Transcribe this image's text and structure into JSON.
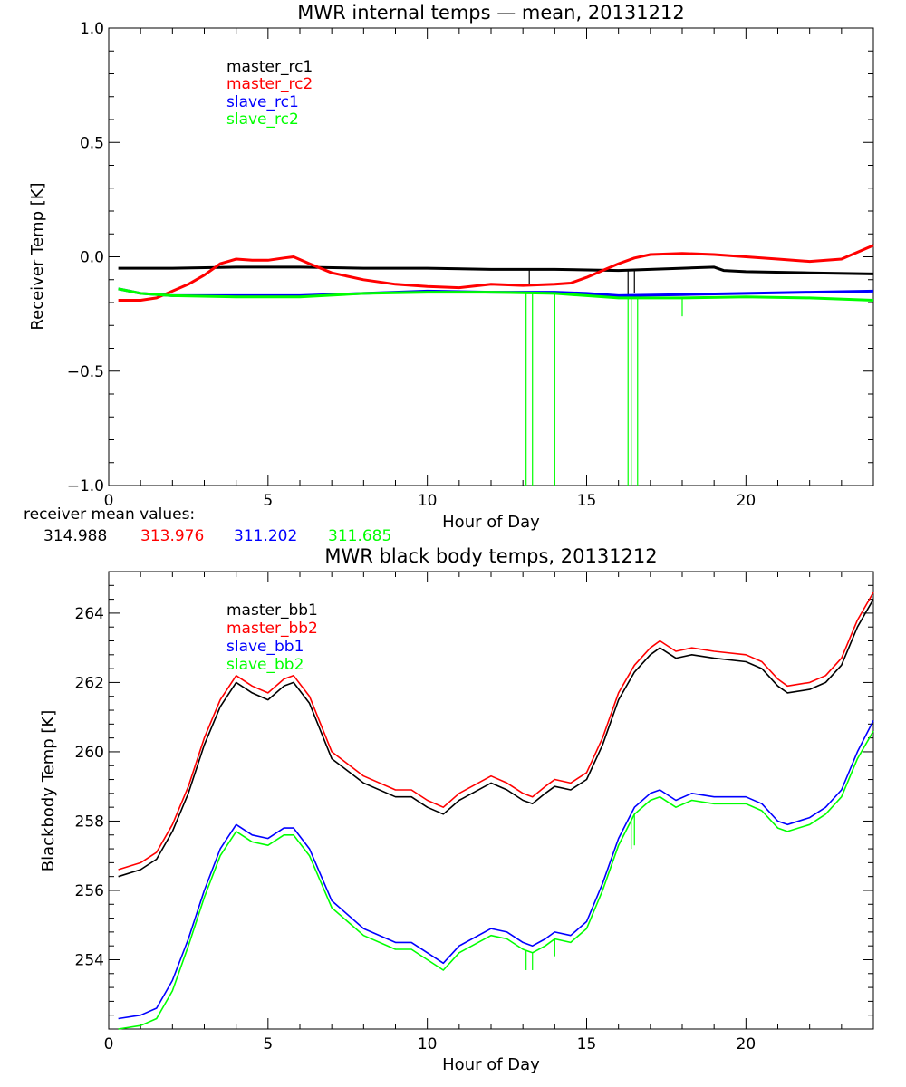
{
  "chart_data": [
    {
      "type": "line",
      "title": "MWR internal temps — mean, 20131212",
      "xlabel": "Hour of Day",
      "ylabel": "Receiver Temp [K]",
      "xlim": [
        0,
        24
      ],
      "ylim": [
        -1.0,
        1.0
      ],
      "x_ticks": [
        0,
        5,
        10,
        15,
        20
      ],
      "x_tick_labels": [
        "0",
        "5",
        "10",
        "15",
        "20"
      ],
      "y_ticks": [
        -1.0,
        -0.5,
        0.0,
        0.5,
        1.0
      ],
      "y_tick_labels": [
        "−1.0",
        "−0.5",
        "0.0",
        "0.5",
        "1.0"
      ],
      "legend_position": "top-left",
      "series": [
        {
          "name": "master_rc1",
          "color": "#000000",
          "x": [
            0.3,
            2,
            4,
            6,
            8,
            10,
            12,
            14,
            16,
            17,
            18,
            19,
            19.3,
            20,
            22,
            24
          ],
          "y": [
            -0.05,
            -0.05,
            -0.045,
            -0.045,
            -0.05,
            -0.05,
            -0.055,
            -0.055,
            -0.06,
            -0.055,
            -0.05,
            -0.045,
            -0.06,
            -0.065,
            -0.07,
            -0.075
          ],
          "spikes": [
            {
              "x": 13.2,
              "y": -0.12
            },
            {
              "x": 16.3,
              "y": -0.17
            },
            {
              "x": 16.5,
              "y": -0.16
            }
          ]
        },
        {
          "name": "master_rc2",
          "color": "#ff0000",
          "x": [
            0.3,
            1,
            1.5,
            2,
            2.5,
            3,
            3.5,
            4,
            4.5,
            5,
            5.5,
            5.8,
            6.3,
            7,
            8,
            9,
            10,
            11,
            12,
            13,
            14,
            14.5,
            15,
            15.5,
            16,
            16.5,
            17,
            18,
            19,
            20,
            21,
            22,
            23,
            24
          ],
          "y": [
            -0.19,
            -0.19,
            -0.18,
            -0.15,
            -0.12,
            -0.08,
            -0.03,
            -0.01,
            -0.015,
            -0.015,
            -0.005,
            0.0,
            -0.03,
            -0.07,
            -0.1,
            -0.12,
            -0.13,
            -0.135,
            -0.12,
            -0.125,
            -0.12,
            -0.115,
            -0.09,
            -0.06,
            -0.03,
            -0.005,
            0.01,
            0.015,
            0.01,
            0.0,
            -0.01,
            -0.02,
            -0.01,
            0.05
          ]
        },
        {
          "name": "slave_rc1",
          "color": "#0000ff",
          "x": [
            0.3,
            1,
            2,
            4,
            6,
            8,
            10,
            12,
            14,
            15,
            16,
            18,
            20,
            22,
            24
          ],
          "y": [
            -0.14,
            -0.16,
            -0.17,
            -0.17,
            -0.17,
            -0.16,
            -0.15,
            -0.155,
            -0.155,
            -0.16,
            -0.17,
            -0.165,
            -0.16,
            -0.155,
            -0.15
          ]
        },
        {
          "name": "slave_rc2",
          "color": "#00ff00",
          "x": [
            0.3,
            1,
            2,
            4,
            6,
            8,
            10,
            12,
            14,
            15,
            16,
            18,
            20,
            22,
            24
          ],
          "y": [
            -0.14,
            -0.16,
            -0.17,
            -0.175,
            -0.175,
            -0.16,
            -0.155,
            -0.155,
            -0.16,
            -0.17,
            -0.18,
            -0.18,
            -0.175,
            -0.18,
            -0.19
          ],
          "spikes": [
            {
              "x": 13.1,
              "y": -1.0
            },
            {
              "x": 13.3,
              "y": -1.0
            },
            {
              "x": 14.0,
              "y": -1.0
            },
            {
              "x": 16.3,
              "y": -1.0
            },
            {
              "x": 16.4,
              "y": -1.0
            },
            {
              "x": 16.6,
              "y": -1.0
            },
            {
              "x": 18.0,
              "y": -0.26
            }
          ]
        }
      ],
      "annotation": {
        "label": "receiver mean values:",
        "values": [
          "314.988",
          "313.976",
          "311.202",
          "311.685"
        ],
        "colors": [
          "#000000",
          "#ff0000",
          "#0000ff",
          "#00ff00"
        ]
      }
    },
    {
      "type": "line",
      "title": "MWR black body temps, 20131212",
      "xlabel": "Hour of Day",
      "ylabel": "Blackbody Temp [K]",
      "xlim": [
        0,
        24
      ],
      "ylim": [
        252,
        265.2
      ],
      "x_ticks": [
        0,
        5,
        10,
        15,
        20
      ],
      "x_tick_labels": [
        "0",
        "5",
        "10",
        "15",
        "20"
      ],
      "y_ticks": [
        254,
        256,
        258,
        260,
        262,
        264
      ],
      "y_tick_labels": [
        "254",
        "256",
        "258",
        "260",
        "262",
        "264"
      ],
      "legend_position": "top-left",
      "series": [
        {
          "name": "master_bb1",
          "color": "#000000",
          "x": [
            0.3,
            1,
            1.5,
            2,
            2.5,
            3,
            3.5,
            4,
            4.5,
            5,
            5.5,
            5.8,
            6.3,
            7,
            8,
            9,
            9.5,
            10,
            10.5,
            11,
            12,
            12.5,
            13,
            13.3,
            13.7,
            14,
            14.5,
            15,
            15.5,
            16,
            16.5,
            17,
            17.3,
            17.8,
            18.3,
            19,
            20,
            20.5,
            21,
            21.3,
            22,
            22.5,
            23,
            23.5,
            24
          ],
          "y": [
            256.4,
            256.6,
            256.9,
            257.7,
            258.8,
            260.2,
            261.3,
            262.0,
            261.7,
            261.5,
            261.9,
            262.0,
            261.4,
            259.8,
            259.1,
            258.7,
            258.7,
            258.4,
            258.2,
            258.6,
            259.1,
            258.9,
            258.6,
            258.5,
            258.8,
            259.0,
            258.9,
            259.2,
            260.2,
            261.5,
            262.3,
            262.8,
            263.0,
            262.7,
            262.8,
            262.7,
            262.6,
            262.4,
            261.9,
            261.7,
            261.8,
            262.0,
            262.5,
            263.6,
            264.4
          ]
        },
        {
          "name": "master_bb2",
          "color": "#ff0000",
          "x": [
            0.3,
            1,
            1.5,
            2,
            2.5,
            3,
            3.5,
            4,
            4.5,
            5,
            5.5,
            5.8,
            6.3,
            7,
            8,
            9,
            9.5,
            10,
            10.5,
            11,
            12,
            12.5,
            13,
            13.3,
            13.7,
            14,
            14.5,
            15,
            15.5,
            16,
            16.5,
            17,
            17.3,
            17.8,
            18.3,
            19,
            20,
            20.5,
            21,
            21.3,
            22,
            22.5,
            23,
            23.5,
            24
          ],
          "y": [
            256.6,
            256.8,
            257.1,
            257.9,
            259.0,
            260.4,
            261.5,
            262.2,
            261.9,
            261.7,
            262.1,
            262.2,
            261.6,
            260.0,
            259.3,
            258.9,
            258.9,
            258.6,
            258.4,
            258.8,
            259.3,
            259.1,
            258.8,
            258.7,
            259.0,
            259.2,
            259.1,
            259.4,
            260.4,
            261.7,
            262.5,
            263.0,
            263.2,
            262.9,
            263.0,
            262.9,
            262.8,
            262.6,
            262.1,
            261.9,
            262.0,
            262.2,
            262.7,
            263.8,
            264.6
          ]
        },
        {
          "name": "slave_bb1",
          "color": "#0000ff",
          "x": [
            0.3,
            1,
            1.5,
            2,
            2.5,
            3,
            3.5,
            4,
            4.5,
            5,
            5.5,
            5.8,
            6.3,
            7,
            8,
            9,
            9.5,
            10,
            10.5,
            11,
            12,
            12.5,
            13,
            13.3,
            13.7,
            14,
            14.5,
            15,
            15.5,
            16,
            16.5,
            17,
            17.3,
            17.8,
            18.3,
            19,
            20,
            20.5,
            21,
            21.3,
            22,
            22.5,
            23,
            23.5,
            24
          ],
          "y": [
            252.3,
            252.4,
            252.6,
            253.4,
            254.6,
            256.0,
            257.2,
            257.9,
            257.6,
            257.5,
            257.8,
            257.8,
            257.2,
            255.7,
            254.9,
            254.5,
            254.5,
            254.2,
            253.9,
            254.4,
            254.9,
            254.8,
            254.5,
            254.4,
            254.6,
            254.8,
            254.7,
            255.1,
            256.2,
            257.5,
            258.4,
            258.8,
            258.9,
            258.6,
            258.8,
            258.7,
            258.7,
            258.5,
            258.0,
            257.9,
            258.1,
            258.4,
            258.9,
            260.0,
            260.9
          ]
        },
        {
          "name": "slave_bb2",
          "color": "#00ff00",
          "x": [
            0.3,
            1,
            1.5,
            2,
            2.5,
            3,
            3.5,
            4,
            4.5,
            5,
            5.5,
            5.8,
            6.3,
            7,
            8,
            9,
            9.5,
            10,
            10.5,
            11,
            12,
            12.5,
            13,
            13.3,
            13.7,
            14,
            14.5,
            15,
            15.5,
            16,
            16.5,
            17,
            17.3,
            17.8,
            18.3,
            19,
            20,
            20.5,
            21,
            21.3,
            22,
            22.5,
            23,
            23.5,
            24
          ],
          "y": [
            252.0,
            252.1,
            252.3,
            253.1,
            254.4,
            255.8,
            257.0,
            257.7,
            257.4,
            257.3,
            257.6,
            257.6,
            257.0,
            255.5,
            254.7,
            254.3,
            254.3,
            254.0,
            253.7,
            254.2,
            254.7,
            254.6,
            254.3,
            254.2,
            254.4,
            254.6,
            254.5,
            254.9,
            256.0,
            257.3,
            258.2,
            258.6,
            258.7,
            258.4,
            258.6,
            258.5,
            258.5,
            258.3,
            257.8,
            257.7,
            257.9,
            258.2,
            258.7,
            259.8,
            260.6
          ],
          "spikes": [
            {
              "x": 13.1,
              "y": 253.7
            },
            {
              "x": 13.3,
              "y": 253.7
            },
            {
              "x": 14.0,
              "y": 254.1
            },
            {
              "x": 16.4,
              "y": 257.2
            },
            {
              "x": 16.5,
              "y": 257.3
            }
          ]
        }
      ]
    }
  ]
}
